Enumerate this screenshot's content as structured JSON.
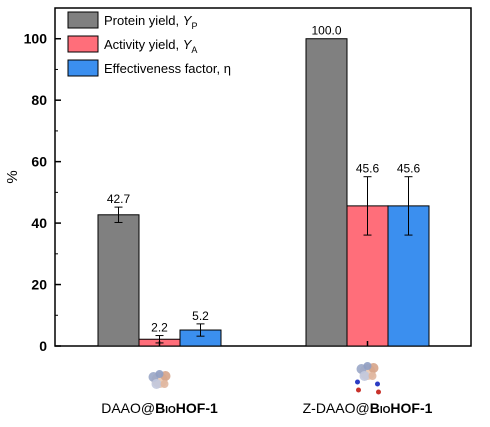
{
  "chart_data": {
    "type": "bar",
    "ylabel": "%",
    "ylim": [
      0,
      110
    ],
    "yticks": [
      0,
      20,
      40,
      60,
      80,
      100
    ],
    "categories": [
      {
        "prefix": "DAAO@",
        "bio": "Bio",
        "suffix": "HOF-1"
      },
      {
        "prefix": "Z-DAAO@",
        "bio": "Bio",
        "suffix": "HOF-1"
      }
    ],
    "series": [
      {
        "name": "Protein yield, ",
        "symbol": "Y",
        "subscript": "P",
        "color": "#808080",
        "values": [
          42.7,
          100.0
        ],
        "errors": [
          2.5,
          null
        ],
        "labels": [
          "42.7",
          "100.0"
        ]
      },
      {
        "name": "Activity yield, ",
        "symbol": "Y",
        "subscript": "A",
        "color": "#ff6e7a",
        "values": [
          2.2,
          45.6
        ],
        "errors": [
          1.2,
          9.5
        ],
        "labels": [
          "2.2",
          "45.6"
        ]
      },
      {
        "name": "Effectiveness factor, ",
        "symbol": "η",
        "subscript": "",
        "color": "#3b8fef",
        "values": [
          5.2,
          45.6
        ],
        "errors": [
          2.0,
          9.5
        ],
        "labels": [
          "5.2",
          "45.6"
        ]
      }
    ],
    "legend_position": "top-left",
    "grid": false,
    "icons": [
      "protein-structure-icon",
      "protein-zwitterion-structure-icon"
    ]
  }
}
